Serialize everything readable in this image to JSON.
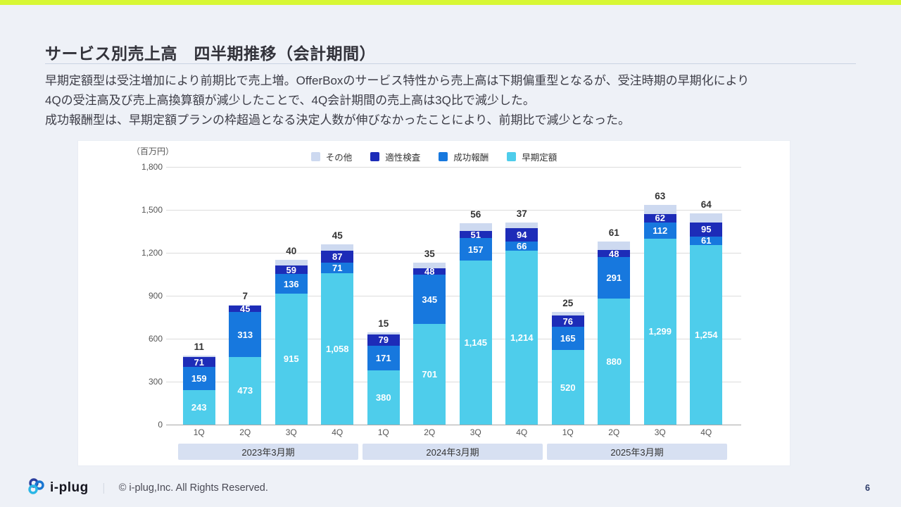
{
  "slide": {
    "title": "サービス別売上高　四半期推移（会計期間）",
    "accent_color": "#d7f734",
    "body": {
      "lines": [
        "早期定額型は受注増加により前期比で売上増。OfferBoxのサービス特性から売上高は下期偏重型となるが、受注時期の早期化により",
        "4Qの受注高及び売上高換算額が減少したことで、4Q会計期間の売上高は3Q比で減少した。",
        "成功報酬型は、早期定額プランの枠超過となる決定人数が伸びなかったことにより、前期比で減少となった。"
      ]
    },
    "footer": {
      "logo_text": "i-plug",
      "separator": "｜",
      "copyright": "© i-plug,Inc. All Rights Reserved.",
      "page_number": "6"
    }
  },
  "chart_data": {
    "type": "bar",
    "stacked": true,
    "unit_label": "（百万円）",
    "ylim": [
      0,
      1800
    ],
    "ytick_step": 300,
    "grid": true,
    "legend_position": "top-center",
    "legend_order": [
      "その他",
      "適性検査",
      "成功報酬",
      "早期定額"
    ],
    "categories": [
      "1Q",
      "2Q",
      "3Q",
      "4Q",
      "1Q",
      "2Q",
      "3Q",
      "4Q",
      "1Q",
      "2Q",
      "3Q",
      "4Q"
    ],
    "period_groups": [
      "2023年3月期",
      "2024年3月期",
      "2025年3月期"
    ],
    "series": [
      {
        "name": "早期定額",
        "color": "#4ecdeb",
        "label_position": "inside",
        "values": [
          243,
          473,
          915,
          1058,
          380,
          701,
          1145,
          1214,
          520,
          880,
          1299,
          1254
        ]
      },
      {
        "name": "成功報酬",
        "color": "#1778de",
        "label_position": "inside",
        "values": [
          159,
          313,
          136,
          71,
          171,
          345,
          157,
          66,
          165,
          291,
          112,
          61
        ]
      },
      {
        "name": "適性検査",
        "color": "#1d2cb8",
        "label_position": "inside",
        "values": [
          71,
          45,
          59,
          87,
          79,
          48,
          51,
          94,
          76,
          48,
          62,
          95
        ]
      },
      {
        "name": "その他",
        "color": "#cdd9f0",
        "label_position": "above",
        "values": [
          11,
          7,
          40,
          45,
          15,
          35,
          56,
          37,
          25,
          61,
          63,
          64
        ]
      }
    ]
  }
}
